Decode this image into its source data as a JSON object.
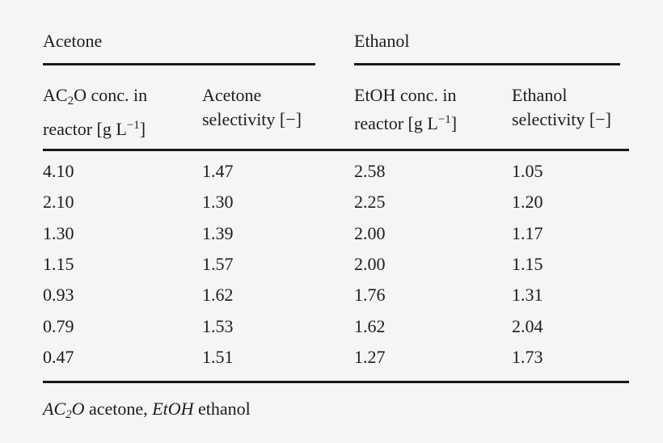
{
  "page": {
    "background_color": "#f5f5f4",
    "ink_color": "#1d1c1a",
    "rule_color": "#1a1918"
  },
  "table": {
    "group_headers": [
      "Acetone",
      "Ethanol"
    ],
    "col_headers": [
      {
        "l1_pre": "AC",
        "l1_sub": "2",
        "l1_post": "O conc. in",
        "l2_pre": "reactor [g L",
        "l2_sup": "−1",
        "l2_post": "]"
      },
      {
        "l1": "Acetone",
        "l2": "selectivity [−]"
      },
      {
        "l1": "EtOH conc. in",
        "l2_pre": "reactor [g L",
        "l2_sup": "−1",
        "l2_post": "]"
      },
      {
        "l1": "Ethanol",
        "l2": "selectivity [−]"
      }
    ],
    "rows": [
      [
        "4.10",
        "1.47",
        "2.58",
        "1.05"
      ],
      [
        "2.10",
        "1.30",
        "2.25",
        "1.20"
      ],
      [
        "1.30",
        "1.39",
        "2.00",
        "1.17"
      ],
      [
        "1.15",
        "1.57",
        "2.00",
        "1.15"
      ],
      [
        "0.93",
        "1.62",
        "1.76",
        "1.31"
      ],
      [
        "0.79",
        "1.53",
        "1.62",
        "2.04"
      ],
      [
        "0.47",
        "1.51",
        "1.27",
        "1.73"
      ]
    ],
    "footnote": {
      "abbr1_pre": "AC",
      "abbr1_sub": "2",
      "abbr1_post": "O",
      "desc1": " acetone, ",
      "abbr2": "EtOH",
      "desc2": " ethanol"
    }
  }
}
